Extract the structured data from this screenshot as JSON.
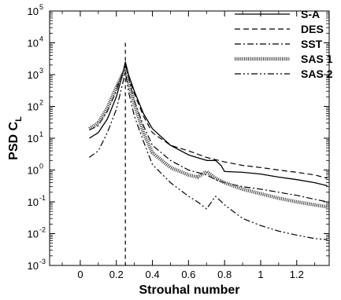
{
  "chart_data": {
    "type": "line",
    "xlabel": "Strouhal number",
    "ylabel_main": "PSD C",
    "ylabel_sub": "L",
    "x_scale": "linear",
    "y_scale": "log",
    "xlim": [
      -0.17,
      1.38
    ],
    "ylim": [
      0.001,
      100000
    ],
    "x_ticks": [
      0,
      0.2,
      0.4,
      0.6,
      0.8,
      1,
      1.2
    ],
    "x_tick_labels": [
      "0",
      "0.2",
      "0.4",
      "0.6",
      "0.8",
      "1",
      "1.2"
    ],
    "y_ticks": [
      0.001,
      0.01,
      0.1,
      1,
      10,
      100,
      1000,
      10000,
      100000
    ],
    "y_tick_mantissa": [
      "10",
      "10",
      "10",
      "10",
      "10",
      "10",
      "10",
      "10",
      "10"
    ],
    "y_tick_exponents": [
      "-3",
      "-2",
      "-1",
      "0",
      "1",
      "2",
      "3",
      "4",
      "5"
    ],
    "reference_line": {
      "x": 0.25,
      "style": "dashed"
    },
    "legend_position": "top-right",
    "grid": false,
    "series": [
      {
        "name": "S-A",
        "style": "solid",
        "x": [
          0.05,
          0.1,
          0.15,
          0.2,
          0.23,
          0.25,
          0.27,
          0.3,
          0.35,
          0.4,
          0.5,
          0.6,
          0.7,
          0.75,
          0.78,
          0.8,
          0.9,
          1.0,
          1.1,
          1.2,
          1.3,
          1.37
        ],
        "y": [
          10,
          15,
          40,
          200,
          800,
          2500,
          900,
          300,
          60,
          20,
          6,
          3,
          2,
          2,
          1.4,
          0.9,
          0.85,
          0.75,
          0.6,
          0.5,
          0.4,
          0.32
        ]
      },
      {
        "name": "DES",
        "style": "dashed",
        "x": [
          0.2,
          0.23,
          0.25,
          0.27,
          0.3,
          0.35,
          0.4,
          0.5,
          0.6,
          0.7,
          0.8,
          0.9,
          1.0,
          1.1,
          1.2,
          1.3,
          1.37
        ],
        "y": [
          400,
          900,
          2000,
          800,
          250,
          50,
          15,
          6,
          4,
          2.5,
          1.8,
          1.4,
          1.2,
          1.0,
          0.85,
          0.7,
          0.55
        ]
      },
      {
        "name": "SST",
        "style": "dashdot",
        "x": [
          0.05,
          0.1,
          0.15,
          0.2,
          0.23,
          0.25,
          0.27,
          0.3,
          0.35,
          0.4,
          0.5,
          0.6,
          0.7,
          0.75,
          0.8,
          0.9,
          1.0,
          1.1,
          1.2,
          1.3,
          1.37
        ],
        "y": [
          18,
          25,
          70,
          300,
          1000,
          2000,
          700,
          150,
          25,
          6,
          2,
          1,
          0.7,
          0.5,
          0.4,
          0.3,
          0.25,
          0.2,
          0.16,
          0.12,
          0.1
        ]
      },
      {
        "name": "SAS 1",
        "style": "dotted",
        "x": [
          0.05,
          0.1,
          0.15,
          0.2,
          0.23,
          0.25,
          0.27,
          0.3,
          0.35,
          0.4,
          0.5,
          0.6,
          0.65,
          0.7,
          0.75,
          0.8,
          0.9,
          1.0,
          1.1,
          1.2,
          1.3,
          1.37
        ],
        "y": [
          20,
          30,
          90,
          400,
          900,
          1500,
          500,
          120,
          15,
          3.5,
          1.2,
          0.7,
          0.6,
          0.9,
          0.55,
          0.4,
          0.25,
          0.18,
          0.13,
          0.1,
          0.08,
          0.07
        ]
      },
      {
        "name": "SAS 2",
        "style": "dashdotdot",
        "x": [
          0.05,
          0.1,
          0.15,
          0.2,
          0.23,
          0.25,
          0.27,
          0.3,
          0.35,
          0.4,
          0.5,
          0.6,
          0.65,
          0.7,
          0.75,
          0.8,
          0.9,
          1.0,
          1.1,
          1.2,
          1.3,
          1.37
        ],
        "y": [
          2.5,
          4,
          15,
          80,
          400,
          1200,
          250,
          50,
          8,
          1.5,
          0.4,
          0.15,
          0.1,
          0.06,
          0.15,
          0.08,
          0.03,
          0.018,
          0.012,
          0.009,
          0.007,
          0.0065
        ]
      }
    ]
  }
}
